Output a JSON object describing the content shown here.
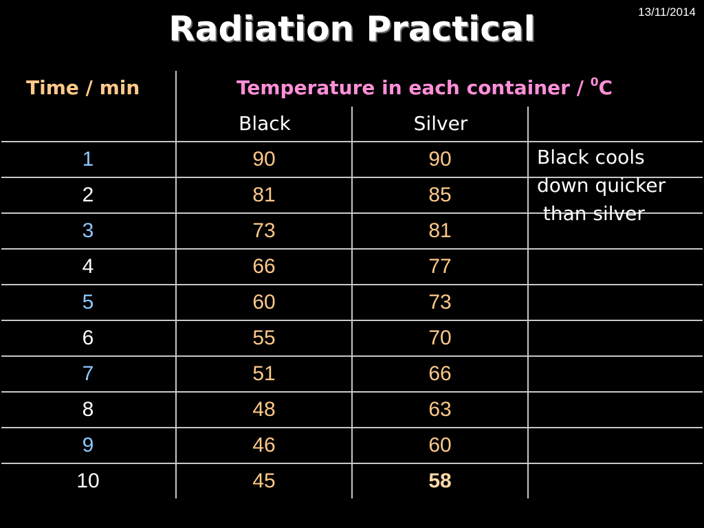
{
  "slide": {
    "date": "13/11/2014",
    "title": "Radiation Practical"
  },
  "table": {
    "time_header": "Time / min",
    "temp_header": "Temperature in each container / ",
    "temp_header_sup": "0",
    "temp_header_unit": "C",
    "columns": [
      "Black",
      "Silver"
    ],
    "rows": [
      {
        "time": "1",
        "black": "90",
        "silver": "90"
      },
      {
        "time": "2",
        "black": "81",
        "silver": "85"
      },
      {
        "time": "3",
        "black": "73",
        "silver": "81"
      },
      {
        "time": "4",
        "black": "66",
        "silver": "77"
      },
      {
        "time": "5",
        "black": "60",
        "silver": "73"
      },
      {
        "time": "6",
        "black": "55",
        "silver": "70"
      },
      {
        "time": "7",
        "black": "51",
        "silver": "66"
      },
      {
        "time": "8",
        "black": "48",
        "silver": "63"
      },
      {
        "time": "9",
        "black": "46",
        "silver": "60"
      },
      {
        "time": "10",
        "black": "45",
        "silver": "58"
      }
    ],
    "conclusion": "Black cools\ndown quicker\n than silver"
  },
  "colors": {
    "time_header": "#ffc98a",
    "temp_header": "#ff8fd8",
    "time_odd": "#8ec8ff",
    "time_even": "#ffffff",
    "values": "#ffc98a",
    "highlight": "#ffd9a8"
  }
}
